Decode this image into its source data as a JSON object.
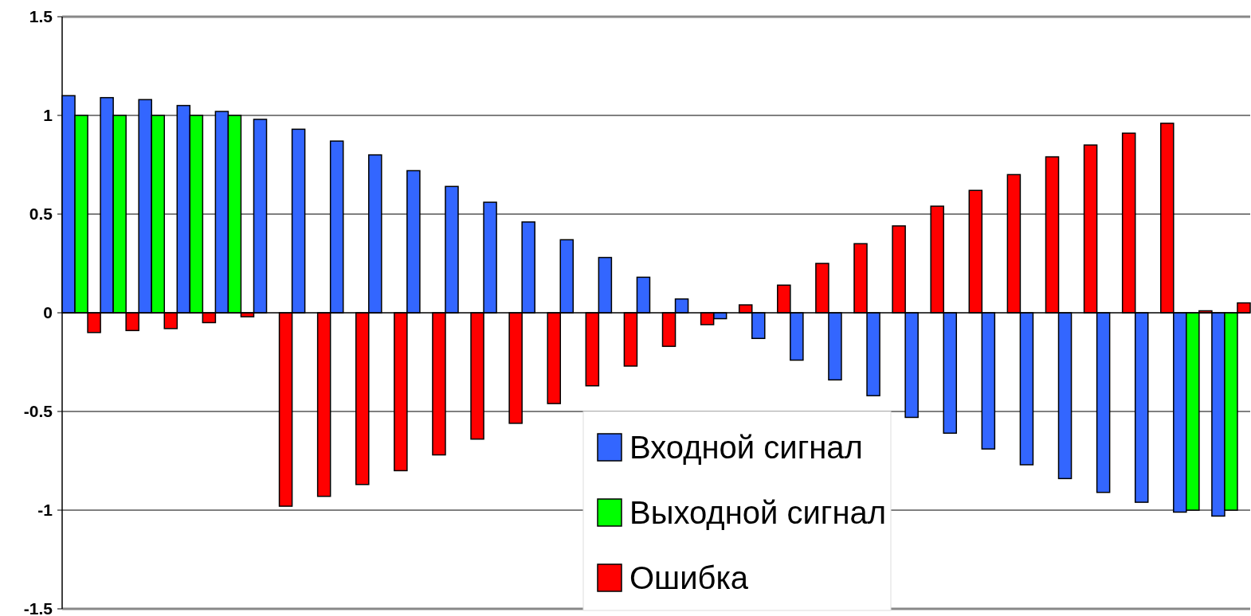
{
  "chart_data": {
    "type": "bar",
    "categories": [
      null,
      null,
      null,
      null,
      null,
      null,
      null,
      null,
      null,
      null,
      null,
      null,
      null,
      null,
      null,
      null,
      null,
      null,
      null,
      null,
      null,
      null,
      null,
      null,
      null,
      null,
      null,
      null,
      null,
      null,
      null
    ],
    "series": [
      {
        "name": "Входной сигнал",
        "color": "#3366ff",
        "values": [
          1.1,
          1.09,
          1.08,
          1.05,
          1.02,
          0.98,
          0.93,
          0.87,
          0.8,
          0.72,
          0.64,
          0.56,
          0.46,
          0.37,
          0.28,
          0.18,
          0.07,
          -0.03,
          -0.13,
          -0.24,
          -0.34,
          -0.42,
          -0.53,
          -0.61,
          -0.69,
          -0.77,
          -0.84,
          -0.91,
          -0.96,
          -1.01,
          -1.03
        ]
      },
      {
        "name": "Выходной сигнал",
        "color": "#00ff00",
        "values": [
          1,
          1,
          1,
          1,
          1,
          null,
          null,
          null,
          null,
          null,
          null,
          null,
          null,
          null,
          null,
          null,
          null,
          null,
          null,
          null,
          null,
          null,
          null,
          null,
          null,
          null,
          null,
          null,
          null,
          -1,
          -1
        ]
      },
      {
        "name": "Ошибка",
        "color": "#ff0000",
        "values": [
          -0.1,
          -0.09,
          -0.08,
          -0.05,
          -0.02,
          -0.98,
          -0.93,
          -0.87,
          -0.8,
          -0.72,
          -0.64,
          -0.56,
          -0.46,
          -0.37,
          -0.27,
          -0.17,
          -0.06,
          0.04,
          0.14,
          0.25,
          0.35,
          0.44,
          0.54,
          0.62,
          0.7,
          0.79,
          0.85,
          0.91,
          0.96,
          0.01,
          0.05
        ]
      }
    ],
    "ylim": [
      -1.5,
      1.5
    ],
    "yticks": [
      1.5,
      1,
      0.5,
      0,
      -0.5,
      -1,
      -1.5
    ],
    "grid": "y",
    "legend": "bottom"
  }
}
